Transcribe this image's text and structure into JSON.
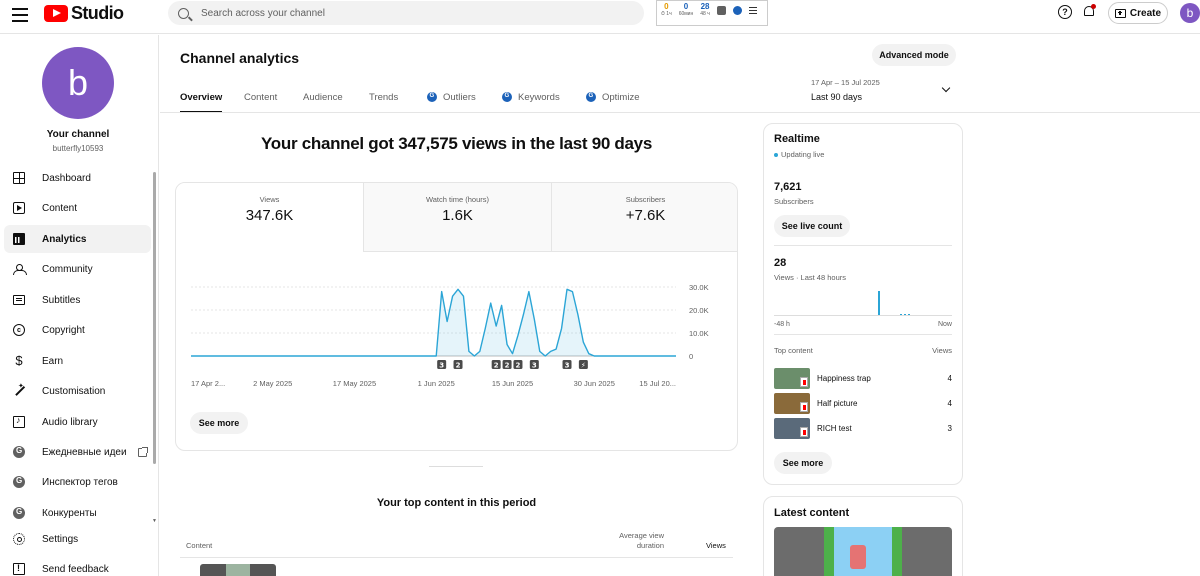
{
  "topbar": {
    "logo_text": "Studio",
    "search_placeholder": "Search across your channel",
    "extension_stats": [
      {
        "value": "0",
        "label": "⏱ 1ч",
        "orange": true
      },
      {
        "value": "0",
        "label": "60мин",
        "orange": false
      },
      {
        "value": "28",
        "label": "48 ч",
        "orange": false
      }
    ],
    "create_label": "Create",
    "avatar_letter": "b"
  },
  "sidebar": {
    "avatar_letter": "b",
    "channel_name": "Your channel",
    "channel_handle": "butterfly10593",
    "items": [
      {
        "label": "Dashboard",
        "icon": "dashboard-icon",
        "active": false
      },
      {
        "label": "Content",
        "icon": "content-icon",
        "active": false
      },
      {
        "label": "Analytics",
        "icon": "analytics-icon",
        "active": true
      },
      {
        "label": "Community",
        "icon": "community-icon",
        "active": false
      },
      {
        "label": "Subtitles",
        "icon": "subtitles-icon",
        "active": false
      },
      {
        "label": "Copyright",
        "icon": "copyright-icon",
        "active": false
      },
      {
        "label": "Earn",
        "icon": "earn-icon",
        "active": false
      },
      {
        "label": "Customisation",
        "icon": "customisation-icon",
        "active": false
      },
      {
        "label": "Audio library",
        "icon": "audio-library-icon",
        "active": false
      },
      {
        "label": "Ежедневные идеи",
        "icon": "extension-icon",
        "active": false,
        "external": true
      },
      {
        "label": "Инспектор тегов",
        "icon": "extension-icon",
        "active": false
      },
      {
        "label": "Конкуренты",
        "icon": "extension-icon",
        "active": false
      },
      {
        "label": "Settings",
        "icon": "settings-icon",
        "active": false
      },
      {
        "label": "Send feedback",
        "icon": "feedback-icon",
        "active": false
      }
    ]
  },
  "main": {
    "title": "Channel analytics",
    "advanced_mode_label": "Advanced mode",
    "tabs": [
      {
        "label": "Overview",
        "active": true,
        "ext": false
      },
      {
        "label": "Content",
        "active": false,
        "ext": false
      },
      {
        "label": "Audience",
        "active": false,
        "ext": false
      },
      {
        "label": "Trends",
        "active": false,
        "ext": false
      },
      {
        "label": "Outliers",
        "active": false,
        "ext": true
      },
      {
        "label": "Keywords",
        "active": false,
        "ext": true
      },
      {
        "label": "Optimize",
        "active": false,
        "ext": true
      }
    ],
    "date_range": {
      "dates": "17 Apr – 15 Jul 2025",
      "label": "Last 90 days"
    },
    "headline": "Your channel got 347,575 views in the last 90 days",
    "metrics": [
      {
        "label": "Views",
        "value": "347.6K",
        "active": true
      },
      {
        "label": "Watch time (hours)",
        "value": "1.6K",
        "active": false
      },
      {
        "label": "Subscribers",
        "value": "+7.6K",
        "active": false
      }
    ],
    "see_more_label": "See more",
    "top_content_title": "Your top content in this period",
    "top_content_columns": {
      "content": "Content",
      "avg_view_duration": "Average view duration",
      "views": "Views"
    }
  },
  "chart_data": {
    "type": "area",
    "x_tick_labels": [
      "17 Apr 2...",
      "2 May 2025",
      "17 May 2025",
      "1 Jun 2025",
      "15 Jun 2025",
      "30 Jun 2025",
      "15 Jul 20..."
    ],
    "y_tick_labels": [
      "30.0K",
      "20.0K",
      "10.0K",
      "0"
    ],
    "ylim": [
      0,
      30000
    ],
    "series_color": "#2ba5d6",
    "x": [
      "17 Apr",
      "30 May",
      "31 May",
      "1 Jun",
      "2 Jun",
      "3 Jun",
      "4 Jun",
      "5 Jun",
      "6 Jun",
      "7 Jun",
      "8 Jun",
      "9 Jun",
      "10 Jun",
      "11 Jun",
      "12 Jun",
      "13 Jun",
      "14 Jun",
      "15 Jun",
      "16 Jun",
      "17 Jun",
      "18 Jun",
      "19 Jun",
      "20 Jun",
      "21 Jun",
      "22 Jun",
      "23 Jun",
      "24 Jun",
      "25 Jun",
      "26 Jun",
      "27 Jun",
      "28 Jun",
      "29 Jun",
      "30 Jun",
      "1 Jul",
      "2 Jul",
      "3 Jul",
      "15 Jul"
    ],
    "values": [
      0,
      0,
      0,
      0,
      28000,
      15000,
      26000,
      29000,
      26000,
      2000,
      0,
      2000,
      12000,
      23000,
      13000,
      22000,
      5000,
      1000,
      9000,
      18000,
      28000,
      16000,
      2000,
      0,
      2000,
      3000,
      12000,
      29000,
      28000,
      18000,
      6000,
      1000,
      0,
      0,
      0,
      0,
      0
    ],
    "markers": [
      {
        "x": "2 Jun",
        "label": "3"
      },
      {
        "x": "5 Jun",
        "label": "2"
      },
      {
        "x": "12 Jun",
        "label": "2"
      },
      {
        "x": "14 Jun",
        "label": "2"
      },
      {
        "x": "16 Jun",
        "label": "2"
      },
      {
        "x": "19 Jun",
        "label": "3"
      },
      {
        "x": "25 Jun",
        "label": "3"
      },
      {
        "x": "28 Jun",
        "label": "⚡"
      }
    ]
  },
  "realtime": {
    "title": "Realtime",
    "status": "Updating live",
    "subscribers_value": "7,621",
    "subscribers_label": "Subscribers",
    "live_count_label": "See live count",
    "views_value": "28",
    "views_label": "Views · Last 48 hours",
    "axis_start": "-48 h",
    "axis_end": "Now",
    "bar_color": "#2ba5d6",
    "bars_48h": [
      {
        "hours_ago": 20,
        "views": 22
      },
      {
        "hours_ago": 14,
        "views": 1
      },
      {
        "hours_ago": 13,
        "views": 1
      },
      {
        "hours_ago": 12,
        "views": 1
      }
    ],
    "top_content_label": "Top content",
    "views_col_label": "Views",
    "top_items": [
      {
        "title": "Happiness trap",
        "views": "4",
        "thumb_color": "#6b8e6b"
      },
      {
        "title": "Half picture",
        "views": "4",
        "thumb_color": "#8a6a3a"
      },
      {
        "title": "RICH test",
        "views": "3",
        "thumb_color": "#5a6a7a"
      }
    ],
    "see_more_label": "See more"
  },
  "latest_content": {
    "title": "Latest content"
  }
}
